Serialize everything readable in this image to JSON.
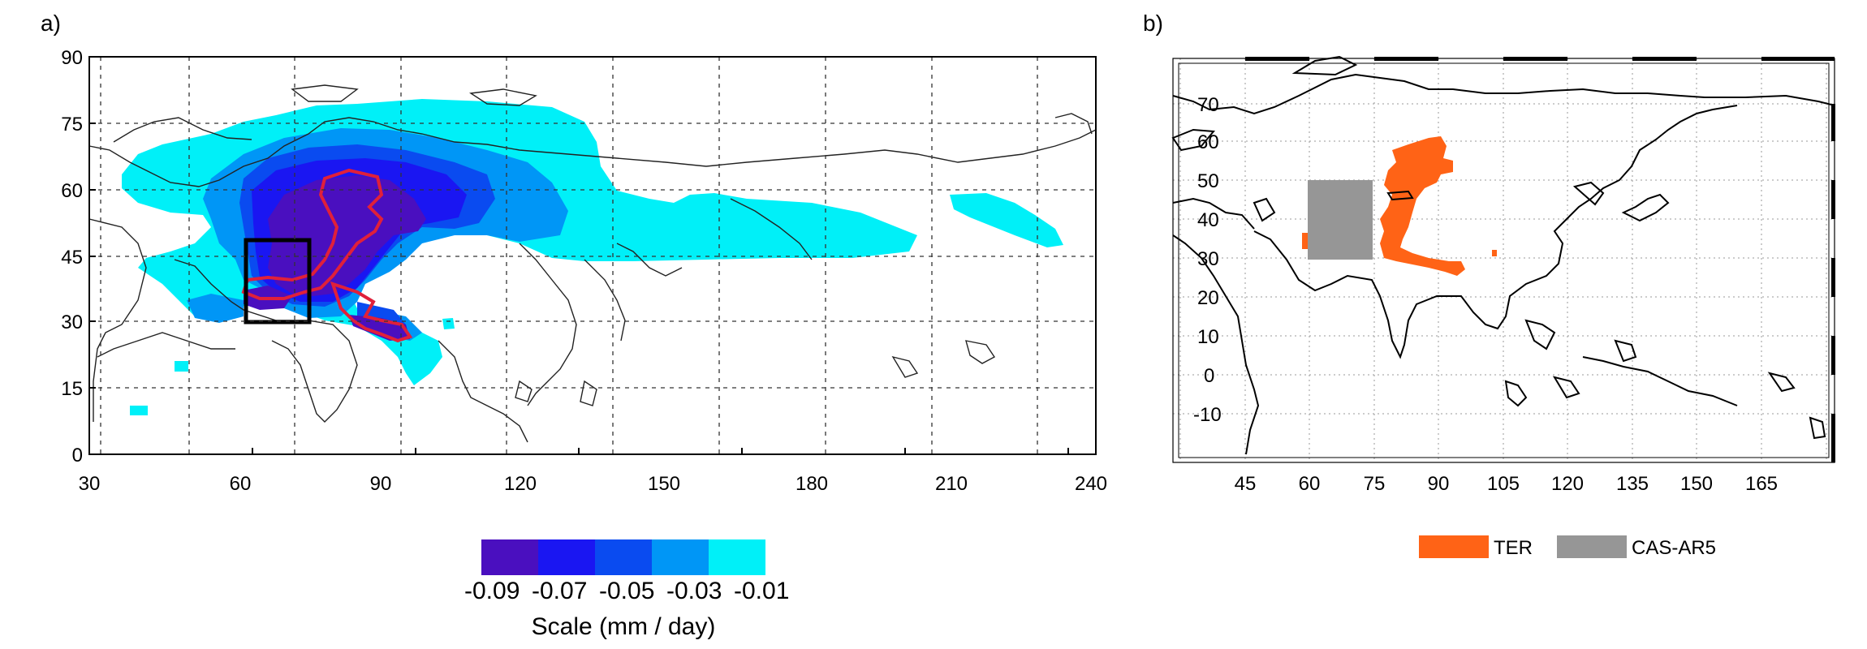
{
  "panel_a": {
    "label": "a)",
    "x_ticks": [
      "30",
      "60",
      "90",
      "120",
      "150",
      "180",
      "210",
      "240"
    ],
    "y_ticks": [
      "0",
      "15",
      "30",
      "45",
      "60",
      "75",
      "90"
    ],
    "colorbar": {
      "colors": [
        "#4a0fbf",
        "#1a16f2",
        "#0a4bf0",
        "#0096f6",
        "#00f0f8"
      ],
      "labels": [
        "-0.09",
        "-0.07",
        "-0.05",
        "-0.03",
        "-0.01"
      ],
      "title": "Scale (mm / day)"
    },
    "box_color": "#000000",
    "contour_color": "#e0203a"
  },
  "panel_b": {
    "label": "b)",
    "x_ticks": [
      "45",
      "60",
      "75",
      "90",
      "105",
      "120",
      "135",
      "150",
      "165"
    ],
    "y_ticks": [
      "70",
      "60",
      "50",
      "40",
      "30",
      "20",
      "10",
      "0",
      "-10"
    ],
    "legend": [
      {
        "name": "TER",
        "color": "#ff6316"
      },
      {
        "name": "CAS-AR5",
        "color": "#969696"
      }
    ]
  }
}
